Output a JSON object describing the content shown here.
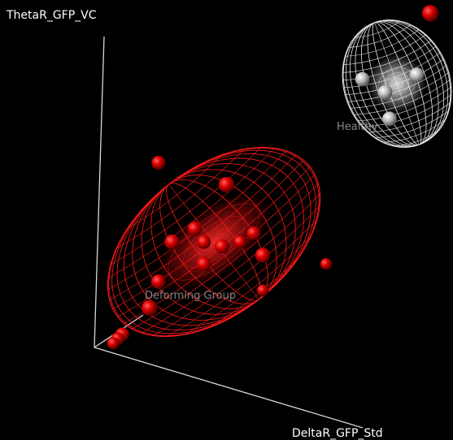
{
  "chart_data": {
    "type": "scatter",
    "title": "",
    "axes": {
      "x_label": "DeltaR_GFP_Std",
      "y_label": "ThetaR_GFP_VC",
      "z_label": ""
    },
    "grid": false,
    "legend": "none",
    "series": [
      {
        "name": "",
        "cluster_label": "Deforming Group",
        "color": "#e00000",
        "points": [
          {
            "u": 0.35,
            "v": 0.36,
            "depth": 0.5
          },
          {
            "u": 0.5,
            "v": 0.58,
            "depth": 0.3
          },
          {
            "u": 0.45,
            "v": 0.45,
            "depth": 0.6
          },
          {
            "u": 0.38,
            "v": 0.45,
            "depth": 0.4
          },
          {
            "u": 0.49,
            "v": 0.44,
            "depth": 0.5
          },
          {
            "u": 0.53,
            "v": 0.45,
            "depth": 0.7
          },
          {
            "u": 0.45,
            "v": 0.4,
            "depth": 0.5
          },
          {
            "u": 0.56,
            "v": 0.47,
            "depth": 0.6
          },
          {
            "u": 0.58,
            "v": 0.42,
            "depth": 0.4
          },
          {
            "u": 0.33,
            "v": 0.3,
            "depth": 0.3
          },
          {
            "u": 0.43,
            "v": 0.48,
            "depth": 0.5
          },
          {
            "u": 0.27,
            "v": 0.24,
            "depth": 0.6
          },
          {
            "u": 0.26,
            "v": 0.23,
            "depth": 0.7
          },
          {
            "u": 0.25,
            "v": 0.22,
            "depth": 0.8
          },
          {
            "u": 0.35,
            "v": 0.63,
            "depth": 0.6
          },
          {
            "u": 0.72,
            "v": 0.4,
            "depth": 0.9
          },
          {
            "u": 0.58,
            "v": 0.34,
            "depth": 0.9
          },
          {
            "u": 0.95,
            "v": 0.97,
            "depth": 0.2
          }
        ]
      },
      {
        "name": "",
        "cluster_label": "Healthy",
        "color": "#cfcfcf",
        "points": [
          {
            "u": 0.8,
            "v": 0.82,
            "depth": 0.5
          },
          {
            "u": 0.92,
            "v": 0.83,
            "depth": 0.5
          },
          {
            "u": 0.86,
            "v": 0.73,
            "depth": 0.5
          },
          {
            "u": 0.85,
            "v": 0.79,
            "depth": 0.5
          }
        ]
      }
    ],
    "clusters": [
      {
        "label": "Deforming Group",
        "color": "#ff1a1a",
        "shape": "ellipsoid"
      },
      {
        "label": "Healthy",
        "color": "#dddddd",
        "shape": "ellipsoid"
      }
    ]
  }
}
